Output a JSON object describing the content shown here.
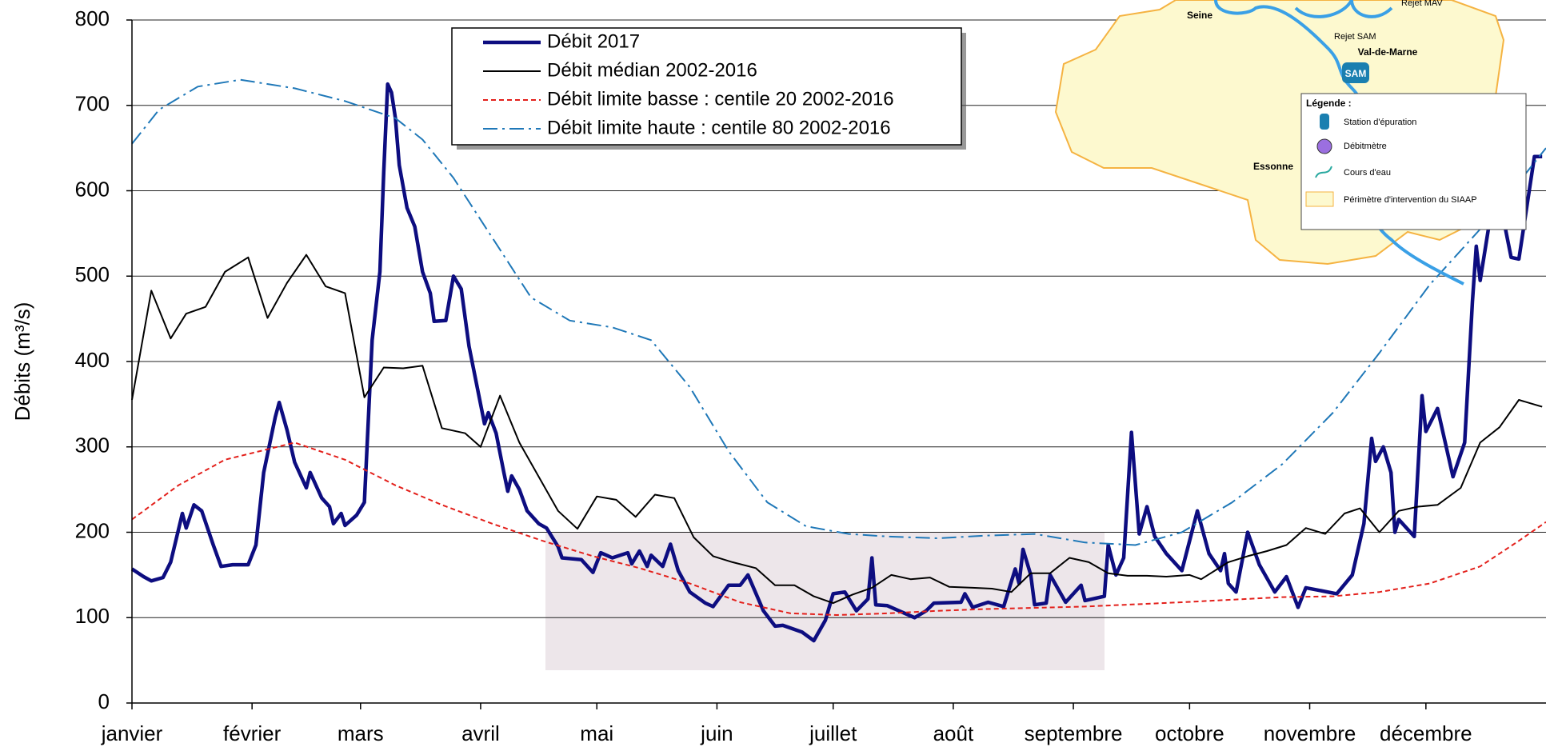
{
  "chart_data": {
    "type": "line",
    "y_label": "Débits (m³/s)",
    "xlim": [
      0,
      365
    ],
    "ylim": [
      0,
      800
    ],
    "yticks": [
      0,
      100,
      200,
      300,
      400,
      500,
      600,
      700,
      800
    ],
    "grid": true,
    "xticks": [
      {
        "value": 0,
        "label": "janvier"
      },
      {
        "value": 31,
        "label": "février"
      },
      {
        "value": 59,
        "label": "mars"
      },
      {
        "value": 90,
        "label": "avril"
      },
      {
        "value": 120,
        "label": "mai"
      },
      {
        "value": 151,
        "label": "juin"
      },
      {
        "value": 181,
        "label": "juillet"
      },
      {
        "value": 212,
        "label": "août"
      },
      {
        "value": 243,
        "label": "septembre"
      },
      {
        "value": 273,
        "label": "octobre"
      },
      {
        "value": 304,
        "label": "novembre"
      },
      {
        "value": 334,
        "label": "décembre"
      }
    ],
    "series": [
      {
        "name": "Débit 2017",
        "color": "#0d0d80",
        "linestyle": "solid",
        "linewidth": 4.5,
        "x": [
          0,
          3,
          5,
          8,
          10,
          13,
          14,
          16,
          18,
          21,
          23,
          26,
          30,
          32,
          34,
          37,
          38,
          40,
          42,
          45,
          46,
          49,
          51,
          52,
          54,
          55,
          58,
          60,
          62,
          64,
          65,
          66,
          67,
          68,
          69,
          71,
          73,
          75,
          77,
          78,
          81,
          83,
          85,
          87,
          90,
          91,
          92,
          94,
          96,
          97,
          98,
          100,
          102,
          105,
          107,
          110,
          111,
          116,
          119,
          121,
          124,
          128,
          129,
          131,
          133,
          134,
          137,
          139,
          141,
          144,
          148,
          150,
          154,
          157,
          159,
          163,
          166,
          168,
          173,
          176,
          179,
          181,
          184,
          187,
          190,
          191,
          192,
          195,
          202,
          205,
          207,
          214,
          215,
          217,
          221,
          225,
          228,
          229,
          230,
          232,
          233,
          236,
          237,
          241,
          245,
          246,
          251,
          252,
          254,
          256,
          258,
          260,
          262,
          264,
          267,
          271,
          275,
          278,
          281,
          282,
          283,
          285,
          288,
          291,
          295,
          298,
          301,
          303,
          311,
          315,
          318,
          320,
          321,
          323,
          325,
          326,
          327,
          331,
          333,
          334,
          337,
          341,
          344,
          346,
          347,
          348,
          351,
          353,
          356,
          358,
          362,
          364
        ],
        "values": [
          157,
          148,
          143,
          147,
          165,
          222,
          205,
          232,
          225,
          185,
          160,
          162,
          162,
          185,
          270,
          335,
          352,
          320,
          282,
          252,
          270,
          240,
          230,
          210,
          222,
          208,
          220,
          235,
          425,
          505,
          622,
          725,
          715,
          685,
          630,
          580,
          558,
          505,
          480,
          447,
          448,
          500,
          485,
          418,
          350,
          327,
          340,
          316,
          270,
          248,
          266,
          250,
          225,
          210,
          205,
          183,
          170,
          168,
          153,
          176,
          170,
          176,
          163,
          178,
          160,
          173,
          160,
          186,
          155,
          130,
          117,
          113,
          138,
          138,
          150,
          108,
          90,
          91,
          83,
          73,
          97,
          128,
          130,
          108,
          122,
          170,
          115,
          114,
          100,
          108,
          117,
          118,
          128,
          112,
          118,
          113,
          157,
          140,
          180,
          150,
          115,
          117,
          150,
          118,
          138,
          120,
          125,
          185,
          150,
          170,
          317,
          198,
          230,
          195,
          175,
          155,
          225,
          175,
          155,
          175,
          140,
          130,
          200,
          162,
          130,
          148,
          112,
          135,
          128,
          150,
          210,
          310,
          283,
          300,
          270,
          200,
          215,
          195,
          360,
          318,
          345,
          265,
          305,
          470,
          535,
          495,
          580,
          590,
          522,
          520,
          640,
          640
        ]
      },
      {
        "name": "Débit médian 2002-2016",
        "color": "#000000",
        "linestyle": "solid",
        "linewidth": 2,
        "x": [
          0,
          5,
          10,
          14,
          19,
          24,
          30,
          35,
          40,
          45,
          50,
          55,
          60,
          65,
          70,
          75,
          80,
          86,
          90,
          95,
          100,
          110,
          115,
          120,
          125,
          130,
          135,
          140,
          145,
          150,
          155,
          161,
          166,
          171,
          176,
          181,
          186,
          191,
          196,
          201,
          206,
          211,
          217,
          222,
          227,
          232,
          237,
          242,
          247,
          252,
          257,
          262,
          267,
          273,
          276,
          283,
          288,
          293,
          298,
          303,
          308,
          313,
          317,
          322,
          327,
          332,
          337,
          343,
          348,
          353,
          358,
          364
        ],
        "values": [
          355,
          483,
          427,
          456,
          464,
          505,
          522,
          451,
          492,
          525,
          488,
          480,
          358,
          393,
          392,
          395,
          322,
          316,
          300,
          360,
          305,
          225,
          204,
          242,
          238,
          218,
          244,
          240,
          194,
          172,
          165,
          158,
          138,
          138,
          125,
          117,
          127,
          135,
          150,
          145,
          147,
          136,
          135,
          134,
          130,
          152,
          152,
          170,
          165,
          152,
          149,
          149,
          148,
          150,
          145,
          165,
          172,
          178,
          185,
          205,
          198,
          222,
          228,
          200,
          225,
          230,
          232,
          252,
          305,
          323,
          355,
          347
        ]
      },
      {
        "name": "Débit limite basse : centile 20 2002-2016",
        "color": "#e3201b",
        "linestyle": "dash",
        "linewidth": 2,
        "x": [
          0,
          12,
          24,
          42,
          55,
          68,
          80,
          93,
          106,
          119,
          131,
          144,
          157,
          170,
          182,
          195,
          208,
          220,
          246,
          271,
          297,
          310,
          322,
          335,
          348,
          358,
          365
        ],
        "values": [
          215,
          255,
          285,
          305,
          285,
          255,
          232,
          210,
          190,
          172,
          158,
          140,
          118,
          105,
          103,
          105,
          108,
          110,
          113,
          118,
          124,
          125,
          130,
          140,
          160,
          190,
          212
        ]
      },
      {
        "name": "Débit limite haute : centile 80 2002-2016",
        "color": "#1f78b8",
        "linestyle": "dashdot",
        "linewidth": 2,
        "x": [
          0,
          7,
          17,
          28,
          42,
          55,
          68,
          75,
          83,
          93,
          103,
          113,
          124,
          134,
          144,
          154,
          164,
          174,
          185,
          195,
          208,
          220,
          233,
          246,
          259,
          271,
          284,
          297,
          310,
          322,
          335,
          348,
          358,
          365
        ],
        "values": [
          655,
          695,
          722,
          730,
          720,
          705,
          685,
          660,
          615,
          545,
          475,
          448,
          440,
          425,
          370,
          295,
          235,
          207,
          198,
          195,
          193,
          196,
          198,
          188,
          185,
          200,
          235,
          280,
          340,
          410,
          490,
          555,
          610,
          650
        ]
      }
    ]
  },
  "map": {
    "labels": [
      "Seine",
      "Val-de-Marne",
      "Essonne"
    ],
    "reject_sam": "Rejet SAM",
    "reject_mav": "Rejet MAV",
    "station": "SAM",
    "legend_title": "Légende :",
    "legend_items": [
      "Station d'épuration",
      "Débitmètre",
      "Cours d'eau",
      "Périmètre d'intervention du SIAAP"
    ]
  }
}
